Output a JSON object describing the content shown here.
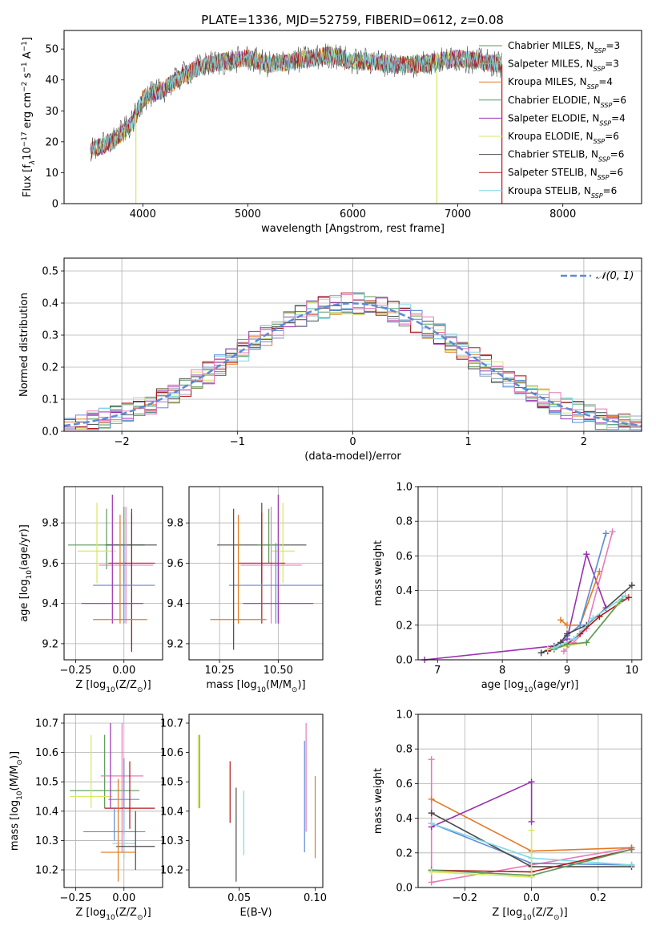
{
  "figure": {
    "title": "PLATE=1336, MJD=52759, FIBERID=0612, z=0.08"
  },
  "colors": {
    "chabrier_miles": "#5a9a5a",
    "salpeter_miles": "#9aa4b5",
    "kroupa_miles": "#e37a22",
    "chabrier_elodie": "#4e9a70",
    "salpeter_elodie": "#9b30b0",
    "kroupa_elodie": "#d6e860",
    "chabrier_stelib": "#4a4a4a",
    "salpeter_stelib": "#b01818",
    "kroupa_stelib": "#7fd8e6",
    "blue": "#5b8bd6",
    "pink": "#e87ab8",
    "grid": "#b0b0b0"
  },
  "chart_data": [
    {
      "id": "spectrum",
      "type": "line",
      "xlabel": "wavelength [Angstrom, rest frame]",
      "ylabel_main": "Flux [f",
      "ylabel_sub": "λ",
      "ylabel_rest": "10",
      "ylabel_sup": "−17",
      "ylabel_tail": " erg cm",
      "ylabel_sup2": "−2",
      "ylabel_mid": " s",
      "ylabel_sup3": "−1",
      "ylabel_end": " A",
      "ylabel_sup4": "−1",
      "ylabel_close": "]",
      "xlim": [
        3250,
        8750
      ],
      "ylim": [
        0,
        56
      ],
      "xticks": [
        4000,
        5000,
        6000,
        7000,
        8000
      ],
      "yticks": [
        0,
        10,
        20,
        30,
        40,
        50
      ],
      "grid": false,
      "legend_position": "top-right",
      "x_start": 3500,
      "x_end": 7420,
      "spectrum_shape": [
        [
          3500,
          17
        ],
        [
          3700,
          20
        ],
        [
          3900,
          26
        ],
        [
          3950,
          30
        ],
        [
          4000,
          34
        ],
        [
          4200,
          37
        ],
        [
          4400,
          42
        ],
        [
          4600,
          45
        ],
        [
          4800,
          46
        ],
        [
          5000,
          47
        ],
        [
          5200,
          45
        ],
        [
          5400,
          46
        ],
        [
          5600,
          47
        ],
        [
          5800,
          48
        ],
        [
          6000,
          46
        ],
        [
          6200,
          46
        ],
        [
          6400,
          45
        ],
        [
          6600,
          45
        ],
        [
          6800,
          46
        ],
        [
          7000,
          47
        ],
        [
          7420,
          45
        ]
      ],
      "dips": [
        [
          3934,
          0
        ],
        [
          6800,
          0
        ],
        [
          7420,
          0
        ]
      ],
      "legend": [
        {
          "label": "Chabrier MILES, N",
          "sub": "SSP",
          "tail": "=3",
          "color_key": "chabrier_miles"
        },
        {
          "label": "Salpeter MILES, N",
          "sub": "SSP",
          "tail": "=3",
          "color_key": "salpeter_miles"
        },
        {
          "label": "Kroupa MILES, N",
          "sub": "SSP",
          "tail": "=4",
          "color_key": "kroupa_miles"
        },
        {
          "label": "Chabrier ELODIE, N",
          "sub": "SSP",
          "tail": "=6",
          "color_key": "chabrier_elodie"
        },
        {
          "label": "Salpeter ELODIE, N",
          "sub": "SSP",
          "tail": "=4",
          "color_key": "salpeter_elodie"
        },
        {
          "label": "Kroupa ELODIE, N",
          "sub": "SSP",
          "tail": "=6",
          "color_key": "kroupa_elodie"
        },
        {
          "label": "Chabrier STELIB, N",
          "sub": "SSP",
          "tail": "=6",
          "color_key": "chabrier_stelib"
        },
        {
          "label": "Salpeter STELIB, N",
          "sub": "SSP",
          "tail": "=6",
          "color_key": "salpeter_stelib"
        },
        {
          "label": "Kroupa STELIB, N",
          "sub": "SSP",
          "tail": "=6",
          "color_key": "kroupa_stelib"
        }
      ]
    },
    {
      "id": "residuals",
      "type": "histogram",
      "xlabel": "(data-model)/error",
      "ylabel": "Normed distribution",
      "xlim": [
        -2.5,
        2.5
      ],
      "ylim": [
        0,
        0.54
      ],
      "xticks": [
        -2,
        -1,
        0,
        1,
        2
      ],
      "xtick_labels": [
        "−2",
        "−1",
        "0",
        "1",
        "2"
      ],
      "yticks": [
        0.0,
        0.1,
        0.2,
        0.3,
        0.4,
        0.5
      ],
      "ytick_labels": [
        "0.0",
        "0.1",
        "0.2",
        "0.3",
        "0.4",
        "0.5"
      ],
      "grid": true,
      "bin_width": 0.1,
      "legend": {
        "label": "𝒩(0, 1)",
        "position": "top-right"
      }
    },
    {
      "id": "age_vs_Z",
      "type": "errorbar",
      "xlabel": "Z [log",
      "xlabel_sub": "10",
      "xlabel_tail": "(Z/Z",
      "xlabel_sub2": "⊙",
      "xlabel_end": ")]",
      "ylabel": "age  [log",
      "ylabel_sub": "10",
      "ylabel_tail": "(age/yr)]",
      "xlim": [
        -0.31,
        0.2
      ],
      "ylim": [
        9.12,
        9.98
      ],
      "xticks": [
        -0.25,
        0.0
      ],
      "xtick_labels": [
        "−0.25",
        "0.00"
      ],
      "yticks": [
        9.2,
        9.4,
        9.6,
        9.8
      ],
      "ytick_labels": [
        "9.2",
        "9.4",
        "9.6",
        "9.8"
      ],
      "grid": true,
      "points": [
        {
          "x": -0.09,
          "y": 9.69,
          "xerr": 0.2,
          "ylo": 9.57,
          "yhi": 9.87,
          "color_key": "chabrier_miles"
        },
        {
          "x": -0.14,
          "y": 9.66,
          "xerr": 0.1,
          "ylo": 9.5,
          "yhi": 9.9,
          "color_key": "kroupa_elodie"
        },
        {
          "x": 0.0,
          "y": 9.69,
          "xerr": 0.1,
          "ylo": 9.5,
          "yhi": 9.88,
          "color_key": "chabrier_elodie"
        },
        {
          "x": 0.04,
          "y": 9.69,
          "xerr": 0.13,
          "ylo": 9.17,
          "yhi": 9.87,
          "color_key": "chabrier_stelib"
        },
        {
          "x": 0.01,
          "y": 9.59,
          "xerr": 0.14,
          "ylo": 9.3,
          "yhi": 9.88,
          "color_key": "pink"
        },
        {
          "x": 0.04,
          "y": 9.6,
          "xerr": 0.12,
          "ylo": 9.16,
          "yhi": 9.85,
          "color_key": "salpeter_stelib"
        },
        {
          "x": 0.0,
          "y": 9.49,
          "xerr": 0.16,
          "ylo": 9.3,
          "yhi": 9.7,
          "color_key": "blue"
        },
        {
          "x": -0.06,
          "y": 9.4,
          "xerr": 0.16,
          "ylo": 9.3,
          "yhi": 9.94,
          "color_key": "salpeter_elodie"
        },
        {
          "x": -0.02,
          "y": 9.32,
          "xerr": 0.14,
          "ylo": 9.3,
          "yhi": 9.84,
          "color_key": "kroupa_miles"
        }
      ]
    },
    {
      "id": "age_vs_mass",
      "type": "errorbar",
      "xlabel": "mass [log",
      "xlabel_sub": "10",
      "xlabel_tail": "(M/M",
      "xlabel_sub2": "⊙",
      "xlabel_end": ")]",
      "xlim": [
        10.12,
        10.69
      ],
      "ylim": [
        9.12,
        9.98
      ],
      "xticks": [
        10.25,
        10.5
      ],
      "xtick_labels": [
        "10.25",
        "10.50"
      ],
      "yticks": [
        9.2,
        9.4,
        9.6,
        9.8
      ],
      "ytick_labels": [
        "9.2",
        "9.4",
        "9.6",
        "9.8"
      ],
      "grid": true,
      "points": [
        {
          "x": 10.43,
          "y": 9.69,
          "xerr": 0.19,
          "ylo": 9.5,
          "yhi": 9.9,
          "color_key": "chabrier_stelib"
        },
        {
          "x": 10.46,
          "y": 9.69,
          "xerr": 0.05,
          "ylo": 9.6,
          "yhi": 9.87,
          "color_key": "chabrier_miles"
        },
        {
          "x": 10.52,
          "y": 9.66,
          "xerr": 0.05,
          "ylo": 9.5,
          "yhi": 9.9,
          "color_key": "kroupa_elodie"
        },
        {
          "x": 10.47,
          "y": 9.59,
          "xerr": 0.13,
          "ylo": 9.3,
          "yhi": 9.88,
          "color_key": "pink"
        },
        {
          "x": 10.43,
          "y": 9.6,
          "xerr": 0.1,
          "ylo": 9.3,
          "yhi": 9.85,
          "color_key": "salpeter_stelib"
        },
        {
          "x": 10.49,
          "y": 9.49,
          "xerr": 0.2,
          "ylo": 9.3,
          "yhi": 9.7,
          "color_key": "blue"
        },
        {
          "x": 10.5,
          "y": 9.4,
          "xerr": 0.15,
          "ylo": 9.3,
          "yhi": 9.94,
          "color_key": "salpeter_elodie"
        },
        {
          "x": 10.33,
          "y": 9.32,
          "xerr": 0.12,
          "ylo": 9.3,
          "yhi": 9.84,
          "color_key": "kroupa_miles"
        },
        {
          "x": 10.31,
          "y": 9.5,
          "xerr": 0.0,
          "ylo": 9.17,
          "yhi": 9.87,
          "color_key": "chabrier_stelib"
        }
      ]
    },
    {
      "id": "weight_vs_age",
      "type": "line",
      "xlabel": "age  [log",
      "xlabel_sub": "10",
      "xlabel_tail": "(age/yr)]",
      "ylabel": "mass weight",
      "xlim": [
        6.7,
        10.15
      ],
      "ylim": [
        0,
        1
      ],
      "xticks": [
        7,
        8,
        9,
        10
      ],
      "yticks": [
        0.0,
        0.2,
        0.4,
        0.6,
        0.8,
        1.0
      ],
      "ytick_labels": [
        "0.0",
        "0.2",
        "0.4",
        "0.6",
        "0.8",
        "1.0"
      ],
      "grid": true,
      "series": [
        {
          "color_key": "salpeter_elodie",
          "x": [
            6.8,
            8.8,
            9.0,
            9.3,
            9.6
          ],
          "y": [
            0.0,
            0.08,
            0.12,
            0.61,
            0.3
          ]
        },
        {
          "color_key": "kroupa_miles",
          "x": [
            8.9,
            9.0,
            9.2,
            9.5
          ],
          "y": [
            0.23,
            0.2,
            0.2,
            0.51
          ]
        },
        {
          "color_key": "pink",
          "x": [
            8.95,
            9.1,
            9.3,
            9.7
          ],
          "y": [
            0.05,
            0.1,
            0.18,
            0.74
          ]
        },
        {
          "color_key": "blue",
          "x": [
            8.6,
            8.8,
            9.0,
            9.2,
            9.6
          ],
          "y": [
            0.04,
            0.07,
            0.14,
            0.2,
            0.73
          ]
        },
        {
          "color_key": "chabrier_stelib",
          "x": [
            8.6,
            8.9,
            9.0,
            9.3,
            10.0
          ],
          "y": [
            0.04,
            0.1,
            0.15,
            0.2,
            0.43
          ]
        },
        {
          "color_key": "salpeter_stelib",
          "x": [
            8.7,
            9.0,
            9.2,
            9.5,
            9.95
          ],
          "y": [
            0.05,
            0.09,
            0.15,
            0.25,
            0.36
          ]
        },
        {
          "color_key": "kroupa_elodie",
          "x": [
            8.7,
            9.0,
            9.3,
            9.8
          ],
          "y": [
            0.06,
            0.08,
            0.1,
            0.33
          ]
        },
        {
          "color_key": "chabrier_miles",
          "x": [
            8.8,
            9.0,
            9.3,
            9.85
          ],
          "y": [
            0.06,
            0.09,
            0.1,
            0.35
          ]
        },
        {
          "color_key": "kroupa_stelib",
          "x": [
            8.8,
            9.1,
            9.4,
            9.9
          ],
          "y": [
            0.07,
            0.12,
            0.24,
            0.37
          ]
        }
      ]
    },
    {
      "id": "mass_vs_Z",
      "type": "errorbar",
      "xlabel": "Z [log",
      "xlabel_sub": "10",
      "xlabel_tail": "(Z/Z",
      "xlabel_sub2": "⊙",
      "xlabel_end": ")]",
      "ylabel": "mass [log",
      "ylabel_sub": "10",
      "ylabel_tail": "(M/M",
      "ylabel_sub2": "⊙",
      "ylabel_end": ")]",
      "xlim": [
        -0.31,
        0.2
      ],
      "ylim": [
        10.14,
        10.73
      ],
      "xticks": [
        -0.25,
        0.0
      ],
      "xtick_labels": [
        "−0.25",
        "0.00"
      ],
      "yticks": [
        10.2,
        10.3,
        10.4,
        10.5,
        10.6,
        10.7
      ],
      "ytick_labels": [
        "10.2",
        "10.3",
        "10.4",
        "10.5",
        "10.6",
        "10.7"
      ],
      "grid": true,
      "points": [
        {
          "x": -0.1,
          "y": 10.47,
          "xerr": 0.18,
          "ylo": 10.41,
          "yhi": 10.66,
          "color_key": "chabrier_miles"
        },
        {
          "x": -0.17,
          "y": 10.45,
          "xerr": 0.11,
          "ylo": 10.41,
          "yhi": 10.66,
          "color_key": "kroupa_elodie"
        },
        {
          "x": -0.01,
          "y": 10.52,
          "xerr": 0.11,
          "ylo": 10.26,
          "yhi": 10.7,
          "color_key": "pink"
        },
        {
          "x": 0.0,
          "y": 10.44,
          "xerr": 0.08,
          "ylo": 10.32,
          "yhi": 10.58,
          "color_key": "blue"
        },
        {
          "x": 0.03,
          "y": 10.41,
          "xerr": 0.13,
          "ylo": 10.34,
          "yhi": 10.57,
          "color_key": "salpeter_stelib"
        },
        {
          "x": -0.05,
          "y": 10.33,
          "xerr": 0.16,
          "ylo": 10.3,
          "yhi": 10.41,
          "color_key": "blue"
        },
        {
          "x": 0.0,
          "y": 10.29,
          "xerr": 0.06,
          "ylo": 10.24,
          "yhi": 10.41,
          "color_key": "kroupa_stelib"
        },
        {
          "x": 0.06,
          "y": 10.28,
          "xerr": 0.1,
          "ylo": 10.2,
          "yhi": 10.4,
          "color_key": "chabrier_stelib"
        },
        {
          "x": -0.03,
          "y": 10.26,
          "xerr": 0.09,
          "ylo": 10.16,
          "yhi": 10.51,
          "color_key": "kroupa_miles"
        },
        {
          "x": -0.07,
          "y": 10.47,
          "xerr": 0.0,
          "ylo": 10.41,
          "yhi": 10.7,
          "color_key": "salpeter_elodie"
        }
      ]
    },
    {
      "id": "mass_vs_ebv",
      "type": "errorbar",
      "xlabel": "E(B-V)",
      "xlim": [
        0.017,
        0.105
      ],
      "ylim": [
        10.14,
        10.73
      ],
      "xticks": [
        0.05,
        0.1
      ],
      "xtick_labels": [
        "0.05",
        "0.10"
      ],
      "yticks": [
        10.2,
        10.3,
        10.4,
        10.5,
        10.6,
        10.7
      ],
      "ytick_labels": [
        "10.2",
        "10.3",
        "10.4",
        "10.5",
        "10.6",
        "10.7"
      ],
      "grid": false,
      "points": [
        {
          "x": 0.023,
          "ylo": 10.41,
          "yhi": 10.66,
          "color_key": "kroupa_elodie"
        },
        {
          "x": 0.024,
          "ylo": 10.41,
          "yhi": 10.66,
          "color_key": "chabrier_miles"
        },
        {
          "x": 0.044,
          "ylo": 10.36,
          "yhi": 10.57,
          "color_key": "salpeter_stelib"
        },
        {
          "x": 0.048,
          "ylo": 10.16,
          "yhi": 10.48,
          "color_key": "chabrier_stelib"
        },
        {
          "x": 0.053,
          "ylo": 10.25,
          "yhi": 10.47,
          "color_key": "kroupa_stelib"
        },
        {
          "x": 0.093,
          "ylo": 10.26,
          "yhi": 10.64,
          "color_key": "blue"
        },
        {
          "x": 0.094,
          "ylo": 10.33,
          "yhi": 10.7,
          "color_key": "pink"
        },
        {
          "x": 0.1,
          "ylo": 10.24,
          "yhi": 10.52,
          "color_key": "kroupa_miles"
        }
      ]
    },
    {
      "id": "weight_vs_Z",
      "type": "line",
      "xlabel": "Z [log",
      "xlabel_sub": "10",
      "xlabel_tail": "(Z/Z",
      "xlabel_sub2": "⊙",
      "xlabel_end": ")]",
      "ylabel": "mass weight",
      "xlim": [
        -0.34,
        0.33
      ],
      "ylim": [
        0,
        1
      ],
      "xticks": [
        -0.2,
        0.0,
        0.2
      ],
      "xtick_labels": [
        "−0.2",
        "0.0",
        "0.2"
      ],
      "yticks": [
        0.0,
        0.2,
        0.4,
        0.6,
        0.8,
        1.0
      ],
      "ytick_labels": [
        "0.0",
        "0.2",
        "0.4",
        "0.6",
        "0.8",
        "1.0"
      ],
      "grid": true,
      "series": [
        {
          "color_key": "pink",
          "x": [
            -0.3,
            -0.3,
            0.3
          ],
          "y": [
            0.74,
            0.03,
            0.23
          ]
        },
        {
          "color_key": "kroupa_miles",
          "x": [
            -0.3,
            0.0,
            0.3
          ],
          "y": [
            0.51,
            0.21,
            0.23
          ]
        },
        {
          "color_key": "salpeter_elodie",
          "x": [
            -0.3,
            0.0,
            0.0
          ],
          "y": [
            0.35,
            0.61,
            0.38
          ]
        },
        {
          "color_key": "blue",
          "x": [
            -0.3,
            0.0,
            0.3
          ],
          "y": [
            0.37,
            0.14,
            0.13
          ]
        },
        {
          "color_key": "chabrier_stelib",
          "x": [
            -0.3,
            0.0,
            0.3
          ],
          "y": [
            0.43,
            0.12,
            0.12
          ]
        },
        {
          "color_key": "kroupa_stelib",
          "x": [
            -0.3,
            0.0,
            0.3
          ],
          "y": [
            0.37,
            0.17,
            0.13
          ]
        },
        {
          "color_key": "salpeter_stelib",
          "x": [
            -0.3,
            0.0,
            0.3
          ],
          "y": [
            0.1,
            0.09,
            0.22
          ]
        },
        {
          "color_key": "chabrier_miles",
          "x": [
            -0.3,
            0.0,
            0.3
          ],
          "y": [
            0.1,
            0.07,
            0.22
          ]
        },
        {
          "color_key": "kroupa_elodie",
          "x": [
            -0.3,
            0.0,
            0.0
          ],
          "y": [
            0.09,
            0.06,
            0.33
          ]
        }
      ]
    }
  ]
}
